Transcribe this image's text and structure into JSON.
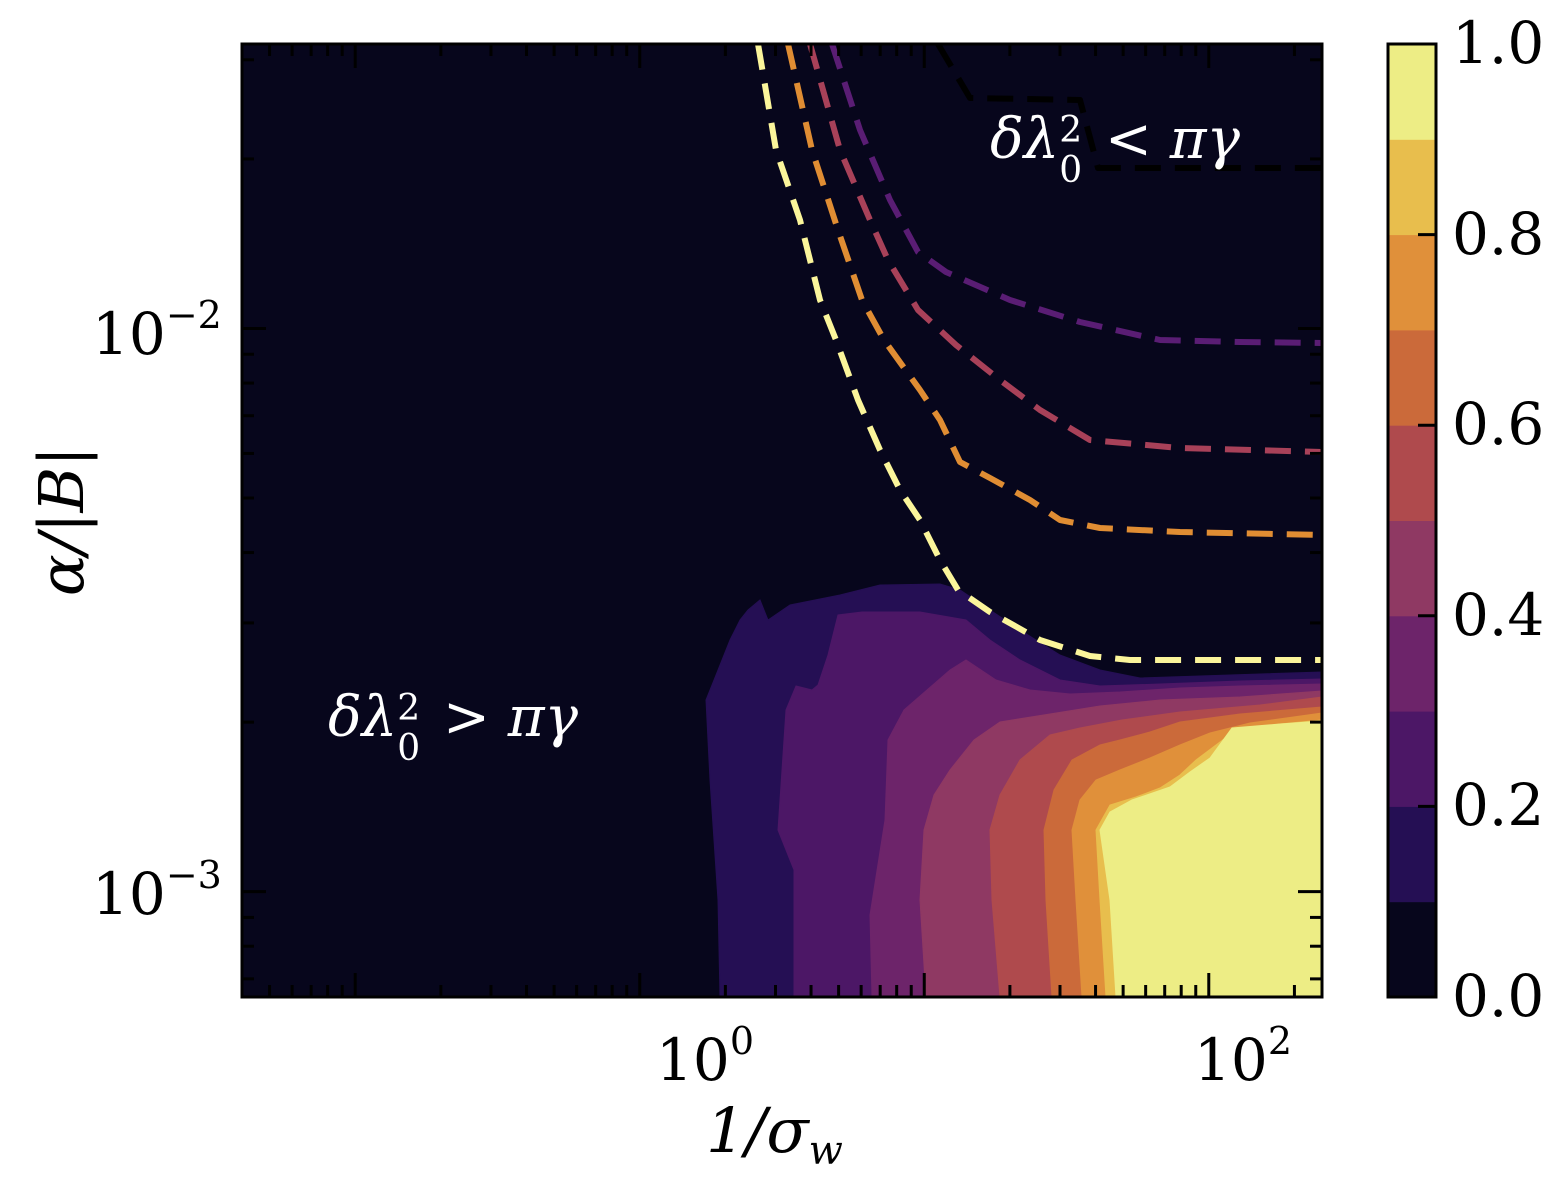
{
  "chart_data": {
    "type": "contourf",
    "title": "",
    "xlabel": "1/σ_w",
    "ylabel": "α/|B|",
    "xscale": "log",
    "yscale": "log",
    "xlim": [
      0.04,
      250
    ],
    "ylim": [
      0.00065,
      0.032
    ],
    "x_ticks": [
      {
        "value": 1,
        "label_base": "10",
        "label_exp": "0"
      },
      {
        "value": 100,
        "label_base": "10",
        "label_exp": "2"
      }
    ],
    "y_ticks": [
      {
        "value": 0.01,
        "label_base": "10",
        "label_exp": "−2"
      },
      {
        "value": 0.001,
        "label_base": "10",
        "label_exp": "−3"
      }
    ],
    "grid": false,
    "colormap": "inferno",
    "colorbar": {
      "min": 0.0,
      "max": 1.0,
      "ticks": [
        "0.0",
        "0.2",
        "0.4",
        "0.6",
        "0.8",
        "1.0"
      ],
      "levels": [
        0.0,
        0.1,
        0.2,
        0.3,
        0.4,
        0.5,
        0.6,
        0.7,
        0.8,
        0.9,
        1.0
      ],
      "level_colors": [
        "#07061c",
        "#250f54",
        "#4c1766",
        "#6d246a",
        "#8f3963",
        "#af4a4d",
        "#cb6a3a",
        "#e0903a",
        "#e8be4d",
        "#eded85"
      ]
    },
    "filled_regions_description": "Value rises from 0 (dark) at small 1/σ_w to ~1 (yellow) at large 1/σ_w and small α/|B|; nonzero region bounded above near α/|B|≈2.5e-3",
    "dashed_contours": [
      {
        "name": "black-boundary",
        "color": "#000000",
        "approx_path": "top-right, from (x≈30,y≈0.03) to plateau y≈0.018"
      },
      {
        "name": "purple",
        "color": "#5a1d74",
        "plateau_y": 0.0092
      },
      {
        "name": "rose",
        "color": "#a84159",
        "plateau_y": 0.0059
      },
      {
        "name": "orange",
        "color": "#e08d33",
        "plateau_y": 0.0041
      },
      {
        "name": "pale-yellow",
        "color": "#fbf59b",
        "plateau_y": 0.0025
      }
    ],
    "annotations": [
      {
        "text": "δλ₀² < πγ",
        "position": "upper-right"
      },
      {
        "text": "δλ₀² > πγ",
        "position": "lower-left"
      }
    ]
  },
  "labels": {
    "x_axis": {
      "main": "1/σ",
      "sub": "w"
    },
    "y_axis": "α/|B|",
    "x_tick_1_base": "10",
    "x_tick_1_exp": "0",
    "x_tick_2_base": "10",
    "x_tick_2_exp": "2",
    "y_tick_1_base": "10",
    "y_tick_1_exp": "−2",
    "y_tick_2_base": "10",
    "y_tick_2_exp": "−3",
    "annot_upper": {
      "pre": "δλ",
      "sup": "2",
      "sub": "0",
      "post": " < πγ"
    },
    "annot_lower": {
      "pre": "δλ",
      "sup": "2",
      "sub": "0",
      "post": " > πγ"
    },
    "cb_ticks": [
      "0.0",
      "0.2",
      "0.4",
      "0.6",
      "0.8",
      "1.0"
    ]
  },
  "colors": {
    "background": "#07061c",
    "frame": "#000000"
  }
}
